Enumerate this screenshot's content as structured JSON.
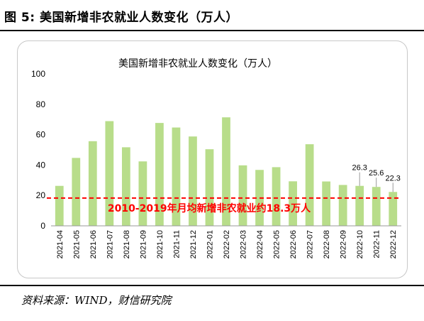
{
  "figure": {
    "title": "图 5:  美国新增非农就业人数变化（万人）",
    "source": "资料来源：WIND，财信研究院"
  },
  "chart_data": {
    "type": "bar",
    "title": "美国新增非农就业人数变化（万人）",
    "xlabel": "",
    "ylabel": "",
    "ylim": [
      0,
      100
    ],
    "yticks": [
      0,
      20,
      40,
      60,
      80,
      100
    ],
    "grid": false,
    "legend": "none",
    "bar_color": "#b8dd8a",
    "categories": [
      "2021-04",
      "2021-05",
      "2021-06",
      "2021-07",
      "2021-08",
      "2021-09",
      "2021-10",
      "2021-11",
      "2021-12",
      "2022-01",
      "2022-02",
      "2022-03",
      "2022-04",
      "2022-05",
      "2022-06",
      "2022-07",
      "2022-08",
      "2022-09",
      "2022-10",
      "2022-11",
      "2022-12"
    ],
    "values": [
      26.3,
      44.7,
      55.7,
      68.9,
      51.7,
      42.4,
      67.7,
      64.7,
      58.8,
      50.4,
      71.4,
      39.8,
      36.8,
      38.6,
      29.3,
      53.7,
      29.2,
      26.9,
      26.3,
      25.6,
      22.3
    ],
    "data_labels": [
      {
        "category": "2022-10",
        "text": "26.3"
      },
      {
        "category": "2022-11",
        "text": "25.6"
      },
      {
        "category": "2022-12",
        "text": "22.3"
      }
    ],
    "reference_line": {
      "value": 18.3,
      "label": "2010-2019年月均新增非农就业约18.3万人",
      "color": "#ff0000"
    }
  }
}
